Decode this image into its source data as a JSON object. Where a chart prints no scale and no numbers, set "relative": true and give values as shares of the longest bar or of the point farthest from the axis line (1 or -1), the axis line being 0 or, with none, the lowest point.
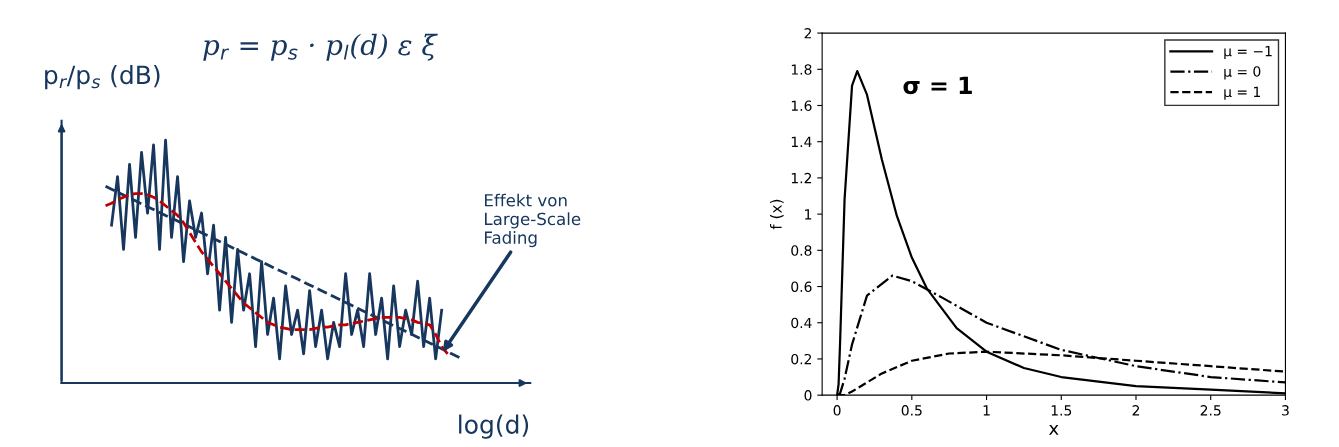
{
  "chart_data": [
    {
      "type": "line",
      "title": "p$_{r}$ = p$_{s}$ · p$_{l}$(d) ε ξ",
      "xlabel": "log(d)",
      "ylabel": "p$_{r}$/p$_{s}$ (dB)",
      "relative": true,
      "grid": false,
      "legend": false,
      "categories": [
        null,
        null,
        null,
        null,
        null,
        null,
        null,
        null,
        null,
        null,
        null,
        null,
        null,
        null,
        null,
        null,
        null,
        null,
        null,
        null,
        null,
        null,
        null,
        null,
        null,
        null,
        null,
        null,
        null,
        null,
        null,
        null,
        null,
        null,
        null,
        null,
        null,
        null,
        null,
        null,
        null,
        null,
        null,
        null,
        null,
        null,
        null,
        null,
        null,
        null,
        null,
        null,
        null,
        null,
        null,
        null,
        null,
        null,
        null,
        null,
        null
      ],
      "annotations": [
        "Effekt von\nLarge-Scale\nFading"
      ],
      "series": [
        {
          "color": "#17375e",
          "line_style": "solid",
          "values": [
            null,
            0.65,
            0.85,
            0.55,
            0.9,
            0.6,
            0.95,
            0.7,
            0.98,
            0.55,
            1.0,
            0.6,
            0.85,
            0.5,
            0.75,
            0.6,
            0.7,
            0.45,
            0.65,
            0.3,
            0.6,
            0.25,
            0.55,
            0.3,
            0.45,
            0.15,
            0.5,
            0.2,
            0.35,
            0.1,
            0.4,
            0.2,
            0.3,
            0.12,
            0.38,
            0.15,
            0.3,
            0.1,
            0.25,
            0.15,
            0.45,
            0.2,
            0.3,
            0.15,
            0.45,
            0.2,
            0.35,
            0.1,
            0.4,
            0.15,
            0.3,
            0.2,
            0.42,
            0.15,
            0.35,
            0.1,
            0.3,
            null,
            null,
            null,
            null
          ]
        },
        {
          "color": "#17375e",
          "line_style": "dashed",
          "values": [
            0.81,
            0.798,
            0.786,
            0.774,
            0.762,
            0.75,
            0.738,
            0.726,
            0.714,
            0.702,
            0.69,
            0.679,
            0.667,
            0.655,
            0.643,
            0.631,
            0.619,
            0.607,
            0.595,
            0.583,
            0.571,
            0.559,
            0.547,
            0.535,
            0.523,
            0.511,
            0.499,
            0.487,
            0.475,
            0.463,
            0.452,
            0.44,
            0.428,
            0.416,
            0.404,
            0.392,
            0.38,
            0.368,
            0.356,
            0.344,
            0.332,
            0.32,
            0.308,
            0.296,
            0.284,
            0.272,
            0.26,
            0.248,
            0.236,
            0.225,
            0.213,
            0.201,
            0.189,
            0.177,
            0.165,
            0.153,
            0.141,
            0.129,
            0.117,
            0.105,
            null
          ]
        },
        {
          "color": "#c00000",
          "line_style": "dashed",
          "values": [
            0.73,
            0.74,
            0.755,
            0.765,
            0.775,
            0.78,
            0.78,
            0.775,
            0.765,
            0.75,
            0.73,
            0.71,
            0.69,
            0.66,
            0.62,
            0.58,
            0.54,
            0.51,
            0.48,
            0.45,
            0.42,
            0.39,
            0.36,
            0.33,
            0.31,
            0.29,
            0.27,
            0.25,
            0.24,
            0.23,
            0.225,
            0.22,
            0.22,
            0.22,
            0.22,
            0.225,
            0.23,
            0.23,
            0.235,
            0.24,
            0.24,
            0.245,
            0.25,
            0.255,
            0.26,
            0.265,
            0.27,
            0.27,
            0.27,
            0.27,
            0.265,
            0.26,
            0.25,
            0.245,
            0.24,
            0.2,
            0.15,
            0.12,
            null,
            null,
            null
          ]
        }
      ]
    },
    {
      "type": "line",
      "xlabel": "x",
      "ylabel": "f (x)",
      "xlim": [
        -0.1,
        3
      ],
      "ylim": [
        0,
        2
      ],
      "xticks": [
        0,
        0.5,
        1,
        1.5,
        2,
        2.5,
        3
      ],
      "yticks": [
        0,
        0.2,
        0.4,
        0.6,
        0.8,
        1,
        1.2,
        1.4,
        1.6,
        1.8,
        2
      ],
      "grid": false,
      "legend": "top right",
      "annotations": [
        "σ = 1"
      ],
      "series": [
        {
          "name": "μ = −1",
          "color": "#000000",
          "line_style": "solid",
          "x": [
            0,
            0.01,
            0.02,
            0.05,
            0.1,
            0.135,
            0.2,
            0.3,
            0.4,
            0.5,
            0.6,
            0.8,
            1,
            1.25,
            1.5,
            2,
            2.5,
            3
          ],
          "values": [
            0,
            0.06,
            0.29,
            1.08,
            1.71,
            1.79,
            1.66,
            1.3,
            0.99,
            0.76,
            0.59,
            0.37,
            0.24,
            0.15,
            0.1,
            0.05,
            0.03,
            0.01
          ]
        },
        {
          "name": "μ = 0",
          "color": "#000000",
          "line_style": "dashdot",
          "x": [
            0,
            0.02,
            0.05,
            0.1,
            0.2,
            0.37,
            0.5,
            0.7,
            1,
            1.5,
            2,
            2.5,
            3
          ],
          "values": [
            0,
            0.01,
            0.09,
            0.28,
            0.55,
            0.66,
            0.63,
            0.54,
            0.4,
            0.25,
            0.16,
            0.1,
            0.07
          ]
        },
        {
          "name": "μ = 1",
          "color": "#000000",
          "line_style": "dashed",
          "x": [
            0,
            0.05,
            0.1,
            0.2,
            0.3,
            0.5,
            0.75,
            1,
            1.5,
            2,
            2.5,
            3
          ],
          "values": [
            0,
            0.0,
            0.02,
            0.07,
            0.12,
            0.19,
            0.23,
            0.24,
            0.22,
            0.19,
            0.16,
            0.13
          ]
        }
      ]
    }
  ]
}
